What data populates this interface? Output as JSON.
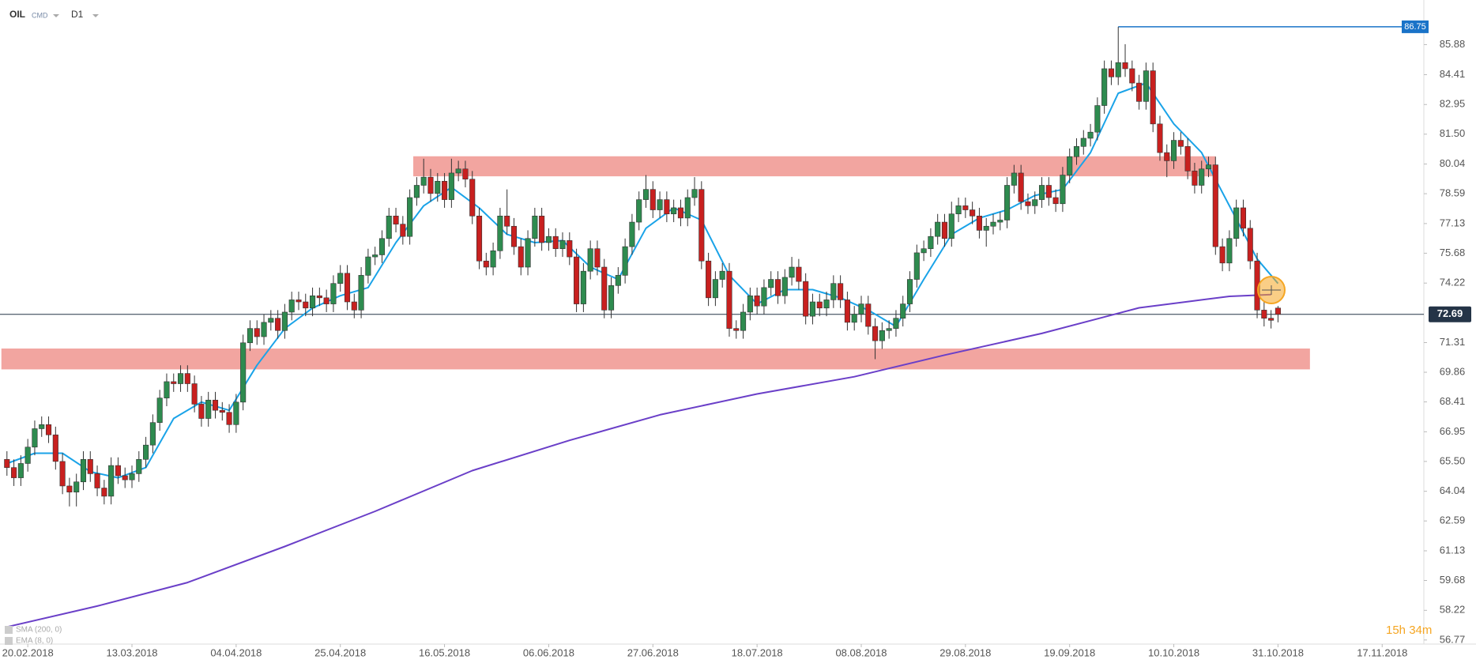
{
  "header": {
    "symbol": "OIL",
    "market": "CMD",
    "interval": "D1"
  },
  "chart_data": {
    "type": "candlestick",
    "up_color": "#2e8b4f",
    "down_color": "#c8201f",
    "open": [
      65.6,
      65.2,
      64.7,
      65.4,
      66.2,
      67.1,
      67.3,
      66.8,
      65.5,
      64.3,
      64.0,
      64.5,
      65.6,
      64.9,
      64.2,
      63.8,
      65.3,
      64.8,
      64.6,
      64.9,
      65.6,
      66.3,
      67.4,
      68.6,
      69.4,
      69.3,
      69.8,
      69.3,
      68.3,
      67.6,
      68.5,
      68.0,
      67.9,
      67.3,
      68.4,
      71.3,
      72.0,
      71.6,
      72.3,
      72.5,
      71.9,
      72.8,
      73.4,
      73.3,
      73.0,
      73.6,
      73.5,
      73.2,
      74.2,
      74.7,
      73.3,
      72.9,
      74.6,
      75.5,
      75.6,
      76.4,
      77.5,
      77.1,
      76.5,
      78.4,
      79.0,
      79.4,
      78.6,
      79.2,
      78.3,
      79.6,
      79.8,
      79.3,
      77.5,
      75.3,
      75.0,
      75.8,
      77.5,
      77.0,
      76.0,
      75.0,
      76.4,
      77.5,
      76.2,
      76.5,
      75.9,
      76.3,
      75.5,
      73.2,
      74.8,
      75.9,
      75.0,
      72.9,
      74.1,
      74.6,
      76.0,
      77.2,
      78.3,
      78.8,
      77.8,
      78.3,
      77.6,
      77.9,
      77.4,
      78.4,
      78.8,
      75.3,
      73.5,
      74.4,
      74.8,
      72.0,
      71.9,
      72.8,
      73.6,
      73.1,
      74.0,
      74.4,
      73.6,
      74.5,
      75.0,
      74.3,
      72.6,
      73.3,
      73.0,
      73.4,
      74.2,
      73.4,
      72.3,
      72.7,
      73.2,
      72.1,
      71.4,
      71.9,
      72.0,
      72.5,
      73.2,
      74.4,
      75.7,
      75.9,
      76.5,
      77.2,
      76.4,
      77.6,
      78.0,
      77.8,
      77.5,
      76.8,
      77.0,
      77.2,
      77.3,
      79.0,
      79.6,
      78.2,
      78.0,
      78.3,
      79.0,
      78.4,
      78.1,
      79.5,
      80.4,
      80.9,
      81.3,
      81.6,
      82.9,
      84.7,
      84.3,
      85.0,
      84.7,
      84.0,
      83.1,
      84.6,
      82.0,
      80.6,
      80.2,
      81.2,
      80.9,
      79.7,
      79.0,
      79.8,
      80.0,
      76.0,
      75.2,
      76.4,
      77.9,
      76.9,
      75.3,
      72.9,
      72.5,
      73.0
    ],
    "high": [
      66.0,
      65.6,
      65.8,
      66.6,
      67.5,
      67.7,
      67.7,
      67.2,
      65.9,
      64.7,
      64.9,
      66.0,
      66.0,
      65.3,
      64.6,
      65.7,
      65.7,
      65.2,
      65.3,
      66.0,
      66.7,
      67.8,
      69.0,
      69.8,
      69.8,
      70.2,
      70.2,
      69.7,
      68.7,
      68.9,
      68.9,
      68.4,
      68.3,
      68.8,
      71.7,
      72.4,
      72.4,
      72.7,
      72.9,
      72.9,
      73.2,
      73.8,
      73.8,
      73.7,
      74.0,
      74.0,
      73.9,
      74.6,
      75.1,
      75.1,
      73.7,
      75.0,
      75.9,
      76.0,
      76.8,
      77.9,
      77.9,
      77.5,
      78.8,
      79.4,
      80.3,
      79.8,
      79.6,
      79.6,
      80.3,
      80.2,
      80.2,
      79.7,
      77.9,
      75.7,
      76.2,
      77.9,
      78.8,
      77.4,
      76.4,
      76.8,
      77.9,
      77.9,
      76.9,
      76.9,
      76.7,
      76.7,
      75.9,
      75.2,
      76.3,
      76.3,
      75.4,
      74.5,
      75.0,
      76.4,
      77.6,
      78.7,
      79.5,
      79.2,
      78.7,
      78.7,
      78.3,
      78.3,
      78.8,
      79.4,
      79.2,
      75.7,
      74.8,
      75.2,
      75.2,
      72.4,
      73.2,
      74.0,
      74.0,
      74.4,
      74.8,
      74.8,
      74.9,
      75.5,
      75.4,
      74.7,
      73.7,
      73.7,
      73.8,
      74.6,
      74.6,
      73.8,
      73.1,
      73.6,
      73.6,
      72.5,
      72.3,
      72.4,
      72.9,
      73.6,
      74.8,
      76.1,
      76.3,
      76.9,
      77.6,
      77.6,
      78.2,
      78.4,
      78.4,
      78.2,
      77.9,
      77.4,
      77.6,
      77.7,
      79.4,
      80.0,
      80.0,
      78.6,
      78.7,
      79.4,
      79.4,
      78.8,
      79.9,
      80.8,
      81.3,
      81.7,
      82.0,
      83.3,
      85.1,
      85.1,
      86.75,
      85.9,
      85.1,
      84.4,
      85.0,
      85.0,
      82.4,
      81.0,
      81.6,
      81.6,
      81.3,
      80.1,
      80.2,
      80.4,
      80.4,
      76.4,
      76.8,
      78.3,
      78.3,
      77.3,
      75.7,
      73.3,
      72.9,
      73.1
    ],
    "low": [
      64.8,
      64.3,
      64.3,
      65.0,
      65.8,
      66.7,
      66.4,
      65.1,
      63.9,
      63.3,
      63.3,
      64.1,
      64.5,
      63.8,
      63.4,
      63.4,
      64.4,
      64.2,
      64.2,
      64.5,
      65.2,
      65.9,
      67.0,
      68.2,
      68.9,
      68.9,
      68.9,
      67.9,
      67.2,
      67.2,
      67.6,
      67.5,
      66.9,
      66.9,
      68.0,
      70.9,
      71.2,
      71.2,
      71.9,
      71.5,
      71.5,
      72.4,
      72.9,
      72.6,
      72.6,
      73.1,
      72.8,
      72.8,
      73.8,
      72.9,
      72.5,
      72.5,
      74.2,
      75.1,
      75.2,
      76.0,
      76.7,
      76.1,
      76.1,
      78.0,
      78.6,
      78.2,
      78.2,
      77.9,
      77.9,
      79.2,
      78.9,
      77.1,
      74.9,
      74.6,
      74.6,
      75.4,
      76.6,
      75.6,
      74.6,
      74.6,
      76.0,
      75.8,
      75.8,
      75.5,
      75.5,
      75.1,
      72.8,
      72.8,
      74.4,
      74.6,
      72.5,
      72.5,
      73.7,
      74.2,
      75.6,
      76.8,
      77.9,
      77.4,
      77.4,
      77.2,
      77.2,
      77.0,
      77.0,
      78.0,
      74.9,
      73.1,
      73.1,
      74.0,
      71.6,
      71.5,
      71.5,
      72.4,
      72.7,
      72.7,
      73.6,
      73.2,
      73.2,
      74.1,
      73.9,
      72.2,
      72.2,
      72.6,
      72.6,
      73.0,
      73.0,
      71.9,
      71.9,
      72.3,
      71.7,
      70.5,
      71.0,
      71.5,
      71.6,
      72.1,
      72.8,
      74.0,
      75.3,
      75.5,
      76.1,
      76.0,
      76.0,
      77.2,
      77.4,
      77.1,
      76.4,
      76.0,
      76.6,
      76.8,
      76.9,
      78.6,
      77.8,
      77.6,
      77.6,
      77.9,
      78.0,
      77.7,
      77.7,
      79.1,
      80.0,
      80.5,
      80.9,
      81.2,
      82.5,
      83.9,
      83.9,
      84.3,
      83.6,
      82.7,
      82.7,
      81.6,
      80.2,
      79.4,
      79.8,
      80.5,
      79.3,
      78.6,
      78.6,
      79.4,
      75.6,
      74.8,
      74.8,
      76.0,
      76.5,
      74.9,
      72.5,
      72.1,
      72.0,
      72.3
    ],
    "close": [
      65.2,
      64.7,
      65.4,
      66.2,
      67.1,
      67.3,
      66.8,
      65.5,
      64.3,
      64.0,
      64.5,
      65.6,
      64.9,
      64.2,
      63.8,
      65.3,
      64.8,
      64.6,
      64.9,
      65.6,
      66.3,
      67.4,
      68.6,
      69.4,
      69.3,
      69.8,
      69.3,
      68.3,
      67.6,
      68.5,
      68.0,
      67.9,
      67.3,
      68.4,
      71.3,
      72.0,
      71.6,
      72.3,
      72.5,
      71.9,
      72.8,
      73.4,
      73.3,
      73.0,
      73.6,
      73.5,
      73.2,
      74.2,
      74.7,
      73.3,
      72.9,
      74.6,
      75.5,
      75.6,
      76.4,
      77.5,
      77.1,
      76.5,
      78.4,
      79.0,
      79.4,
      78.6,
      79.2,
      78.3,
      79.6,
      79.8,
      79.3,
      77.5,
      75.3,
      75.0,
      75.8,
      77.5,
      77.0,
      76.0,
      75.0,
      76.4,
      77.5,
      76.2,
      76.5,
      75.9,
      76.3,
      75.5,
      73.2,
      74.8,
      75.9,
      75.0,
      72.9,
      74.1,
      74.6,
      76.0,
      77.2,
      78.3,
      78.8,
      77.8,
      78.3,
      77.6,
      77.9,
      77.4,
      78.4,
      78.8,
      75.3,
      73.5,
      74.4,
      74.8,
      72.0,
      71.9,
      72.8,
      73.6,
      73.1,
      74.0,
      74.4,
      73.6,
      74.5,
      75.0,
      74.3,
      72.6,
      73.3,
      73.0,
      73.4,
      74.2,
      73.4,
      72.3,
      72.7,
      73.2,
      72.1,
      71.4,
      71.9,
      72.0,
      72.5,
      73.2,
      74.4,
      75.7,
      75.9,
      76.5,
      77.2,
      76.4,
      77.6,
      78.0,
      77.8,
      77.5,
      76.8,
      77.0,
      77.2,
      77.3,
      79.0,
      79.6,
      78.2,
      78.0,
      78.3,
      79.0,
      78.4,
      78.1,
      79.5,
      80.4,
      80.9,
      81.3,
      81.6,
      82.9,
      84.7,
      84.3,
      85.0,
      84.7,
      84.0,
      83.1,
      84.6,
      82.0,
      80.6,
      80.2,
      81.2,
      80.9,
      79.7,
      79.0,
      79.8,
      80.0,
      76.0,
      75.2,
      76.4,
      77.9,
      76.9,
      75.3,
      72.9,
      72.5,
      72.4,
      72.69
    ],
    "indicators": [
      {
        "name": "SMA (200, 0)",
        "color": "#6a3fc8",
        "x": [
          0,
          13,
          26,
          40,
          53,
          67,
          81,
          94,
          108,
          122,
          135,
          149,
          163,
          176,
          182
        ],
        "values": [
          57.41,
          58.43,
          59.58,
          61.34,
          63.06,
          65.05,
          66.53,
          67.78,
          68.8,
          69.64,
          70.7,
          71.76,
          73.01,
          73.57,
          73.66
        ]
      },
      {
        "name": "EMA (8, 0)",
        "color": "#1aa3e8",
        "x": [
          0,
          4,
          8,
          12,
          16,
          20,
          24,
          28,
          32,
          36,
          40,
          44,
          48,
          52,
          56,
          60,
          64,
          68,
          72,
          76,
          80,
          84,
          88,
          92,
          96,
          100,
          104,
          108,
          112,
          116,
          120,
          124,
          128,
          132,
          136,
          140,
          144,
          148,
          152,
          156,
          160,
          164,
          168,
          172,
          176,
          180,
          183
        ],
        "values": [
          65.4,
          65.9,
          65.9,
          65.0,
          64.7,
          65.2,
          67.6,
          68.4,
          68.0,
          70.2,
          72.0,
          73.0,
          73.6,
          74.0,
          76.2,
          78.0,
          78.9,
          77.9,
          76.6,
          76.2,
          76.3,
          75.0,
          74.4,
          76.9,
          77.9,
          77.3,
          74.6,
          73.2,
          73.9,
          73.9,
          73.5,
          72.9,
          72.1,
          74.4,
          76.6,
          77.4,
          77.8,
          78.5,
          78.8,
          80.6,
          83.5,
          84.0,
          82.0,
          80.6,
          78.0,
          75.4,
          74.2
        ]
      }
    ],
    "zones": [
      {
        "x": [
          58.5,
          174
        ],
        "y": [
          79.44,
          80.42
        ],
        "color": "#f19b96"
      },
      {
        "x": [
          -0.8,
          187.6
        ],
        "y": [
          70.0,
          71.02
        ],
        "color": "#f19b96"
      }
    ],
    "price_lines": [
      {
        "value": 86.75,
        "from": 160,
        "color": "#1a73c8"
      },
      {
        "value": 72.69,
        "from": -1,
        "color": "#243447"
      }
    ],
    "xlim": [
      -1,
      204
    ],
    "xticks": [
      {
        "value": 3,
        "label": "20.02.2018"
      },
      {
        "value": 18,
        "label": "13.03.2018"
      },
      {
        "value": 33,
        "label": "04.04.2018"
      },
      {
        "value": 48,
        "label": "25.04.2018"
      },
      {
        "value": 63,
        "label": "16.05.2018"
      },
      {
        "value": 78,
        "label": "06.06.2018"
      },
      {
        "value": 93,
        "label": "27.06.2018"
      },
      {
        "value": 108,
        "label": "18.07.2018"
      },
      {
        "value": 123,
        "label": "08.08.2018"
      },
      {
        "value": 138,
        "label": "29.08.2018"
      },
      {
        "value": 153,
        "label": "19.09.2018"
      },
      {
        "value": 168,
        "label": "10.10.2018"
      },
      {
        "value": 183,
        "label": "31.10.2018"
      },
      {
        "value": 198,
        "label": "17.11.2018"
      }
    ],
    "ylim": [
      56.57,
      88.06
    ],
    "yticks": [
      85.88,
      84.41,
      82.95,
      {
        "value": 81.5,
        "label": "81.50"
      },
      80.04,
      78.59,
      77.13,
      75.68,
      74.22,
      71.31,
      69.86,
      68.41,
      66.95,
      {
        "value": 65.5,
        "label": "65.50"
      },
      64.04,
      62.59,
      61.13,
      59.68,
      58.22,
      56.77
    ],
    "countdown": "15h 34m"
  }
}
